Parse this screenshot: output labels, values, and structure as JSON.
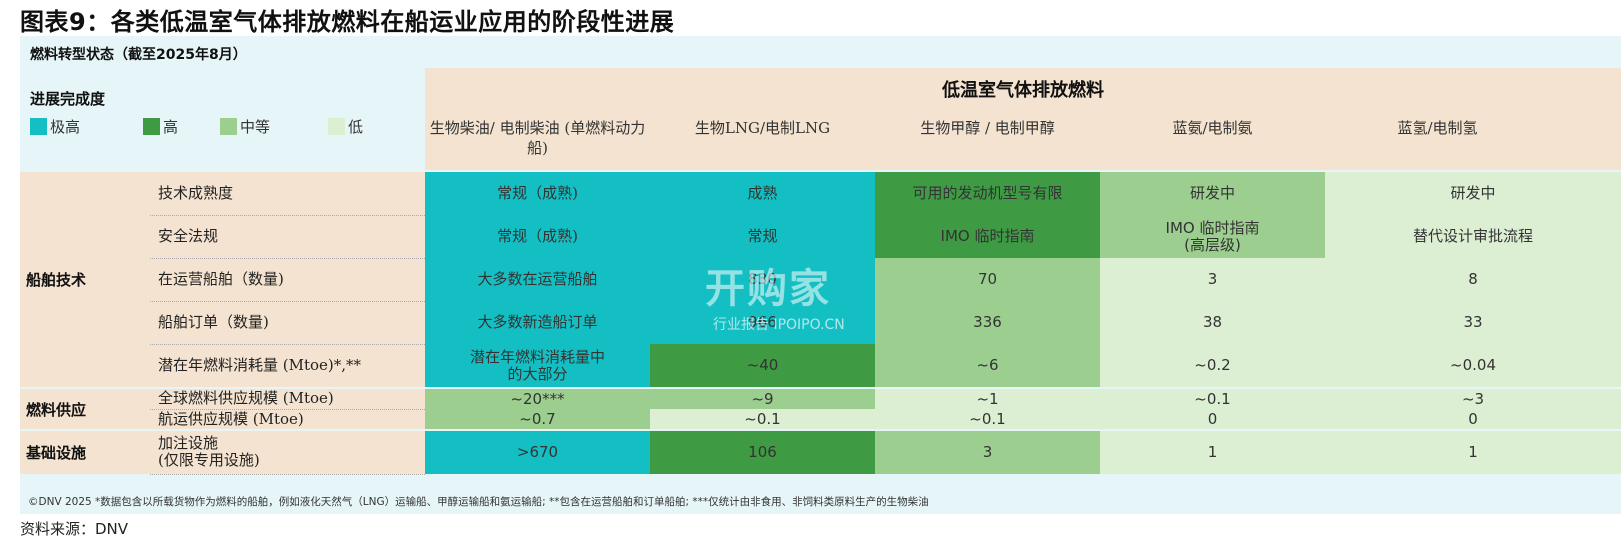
{
  "title": "图表9：各类低温室气体排放燃料在船运业应用的阶段性进展",
  "subtitle": "燃料转型状态（截至2025年8月）",
  "legend": {
    "title": "进展完成度",
    "items": [
      {
        "label": "极高",
        "color": "#14bfc3"
      },
      {
        "label": "高",
        "color": "#3e9b44"
      },
      {
        "label": "中等",
        "color": "#9ccf8f"
      },
      {
        "label": "低",
        "color": "#dcefd3"
      }
    ]
  },
  "fuel_header": "低温室气体排放燃料",
  "fuels": [
    "生物柴油/ 电制柴油\n(单燃料动力船)",
    "生物LNG/电制LNG",
    "生物甲醇 / 电制甲醇",
    "蓝氨/电制氨",
    "蓝氢/电制氢"
  ],
  "sections": [
    {
      "name": "船舶技术",
      "rows": [
        {
          "label": "技术成熟度",
          "cells": [
            {
              "text": "常规（成熟)",
              "level": "very_high"
            },
            {
              "text": "成熟",
              "level": "very_high"
            },
            {
              "text": "可用的发动机型号有限",
              "level": "high"
            },
            {
              "text": "研发中",
              "level": "medium"
            },
            {
              "text": "研发中",
              "level": "low"
            }
          ]
        },
        {
          "label": "安全法规",
          "cells": [
            {
              "text": "常规（成熟)",
              "level": "very_high"
            },
            {
              "text": "常规",
              "level": "very_high"
            },
            {
              "text": "IMO 临时指南",
              "level": "high"
            },
            {
              "text": "IMO 临时指南\n(高层级)",
              "level": "medium"
            },
            {
              "text": "替代设计审批流程",
              "level": "low"
            }
          ]
        },
        {
          "label": "在运营船舶（数量)",
          "cells": [
            {
              "text": "大多数在运营船舶",
              "level": "very_high"
            },
            {
              "text": "830",
              "level": "very_high"
            },
            {
              "text": "70",
              "level": "medium"
            },
            {
              "text": "3",
              "level": "low"
            },
            {
              "text": "8",
              "level": "low"
            }
          ]
        },
        {
          "label": "船舶订单（数量)",
          "cells": [
            {
              "text": "大多数新造船订单",
              "level": "very_high"
            },
            {
              "text": "966",
              "level": "very_high"
            },
            {
              "text": "336",
              "level": "medium"
            },
            {
              "text": "38",
              "level": "low"
            },
            {
              "text": "33",
              "level": "low"
            }
          ]
        },
        {
          "label": "潜在年燃料消耗量 (Mtoe)*,**",
          "cells": [
            {
              "text": "潜在年燃料消耗量中\n的大部分",
              "level": "very_high"
            },
            {
              "text": "~40",
              "level": "high"
            },
            {
              "text": "~6",
              "level": "medium"
            },
            {
              "text": "~0.2",
              "level": "low"
            },
            {
              "text": "~0.04",
              "level": "low"
            }
          ]
        }
      ]
    },
    {
      "name": "燃料供应",
      "rows": [
        {
          "label": "全球燃料供应规模 (Mtoe)",
          "cells": [
            {
              "text": "~20***",
              "level": "medium"
            },
            {
              "text": "~9",
              "level": "medium"
            },
            {
              "text": "~1",
              "level": "low"
            },
            {
              "text": "~0.1",
              "level": "low"
            },
            {
              "text": "~3",
              "level": "low"
            }
          ]
        },
        {
          "label": "航运供应规模 (Mtoe)",
          "cells": [
            {
              "text": "~0.7",
              "level": "medium"
            },
            {
              "text": "~0.1",
              "level": "low"
            },
            {
              "text": "~0.1",
              "level": "low"
            },
            {
              "text": "0",
              "level": "low"
            },
            {
              "text": "0",
              "level": "low"
            }
          ]
        }
      ]
    },
    {
      "name": "基础设施",
      "rows": [
        {
          "label": "加注设施\n(仅限专用设施)",
          "cells": [
            {
              "text": ">670",
              "level": "very_high"
            },
            {
              "text": "106",
              "level": "high"
            },
            {
              "text": "3",
              "level": "medium"
            },
            {
              "text": "1",
              "level": "low"
            },
            {
              "text": "1",
              "level": "low"
            }
          ]
        }
      ]
    }
  ],
  "footer": "©DNV 2025   *数据包含以所载货物作为燃料的船舶，例如液化天然气（LNG）运输船、甲醇运输船和氨运输船; **包含在运营船舶和订单船舶; ***仅统计由非食用、非饲料类原料生产的生物柴油",
  "source": "资料来源：DNV",
  "watermark": {
    "logo": "开购家",
    "tagline": "行业报告 IPOIPO.CN"
  }
}
